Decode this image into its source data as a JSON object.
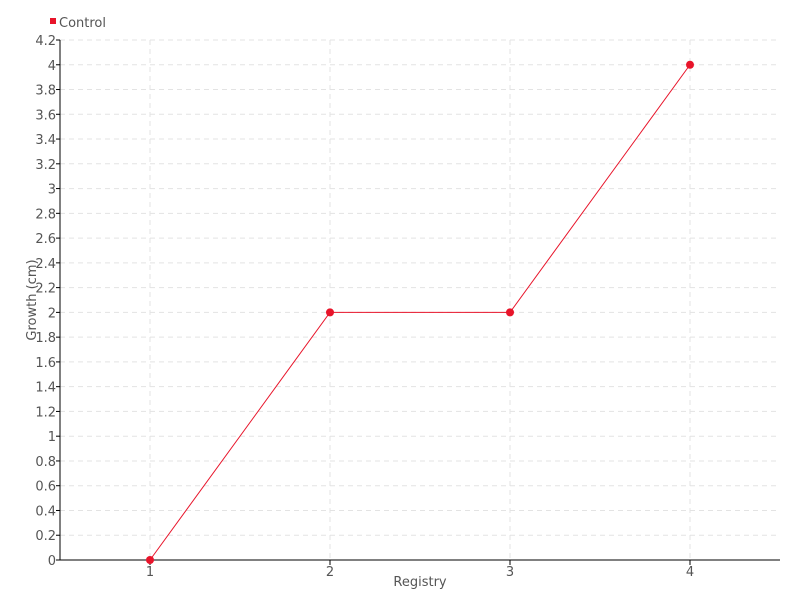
{
  "chart_data": {
    "type": "line",
    "title": "",
    "xlabel": "Registry",
    "ylabel": "Growth (cm)",
    "categories": [
      "1",
      "2",
      "3",
      "4"
    ],
    "x": [
      1,
      2,
      3,
      4
    ],
    "series": [
      {
        "name": "Control",
        "values": [
          0,
          2,
          2,
          4
        ],
        "color": "#e8142a"
      }
    ],
    "xlim": [
      0.5,
      4.5
    ],
    "ylim": [
      0,
      4.2
    ],
    "yticks": [
      "0",
      "0.2",
      "0.4",
      "0.6",
      "0.8",
      "1",
      "1.2",
      "1.4",
      "1.6",
      "1.8",
      "2",
      "2.2",
      "2.4",
      "2.6",
      "2.8",
      "3",
      "3.2",
      "3.4",
      "3.6",
      "3.8",
      "4",
      "4.2"
    ],
    "grid": true,
    "legend": "top-left"
  }
}
